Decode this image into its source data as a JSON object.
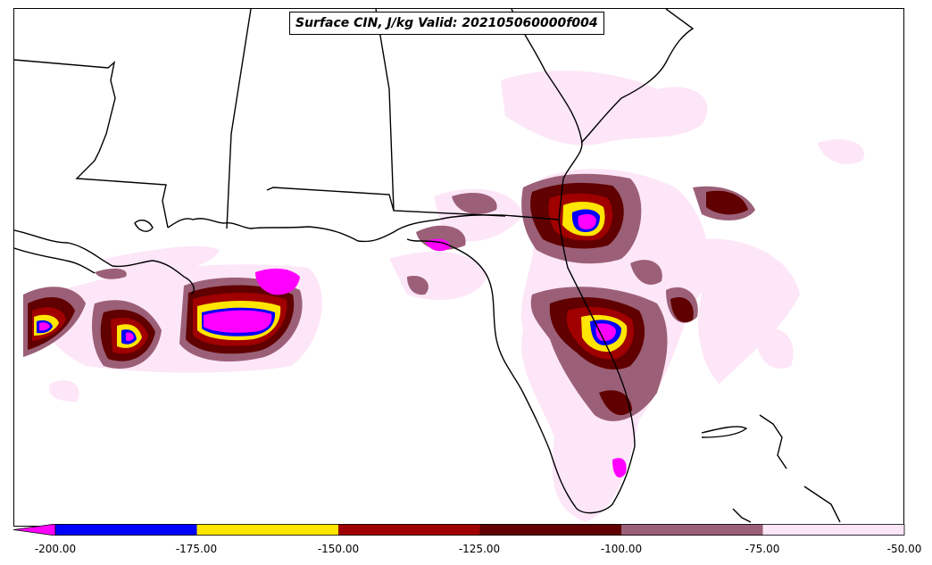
{
  "title": "Surface CIN, J/kg Valid: 202105060000f004",
  "colorbar": {
    "extend": "min",
    "extend_color": "#ff00ff",
    "bins": [
      {
        "from": -200,
        "to": -175,
        "color": "#0000ff"
      },
      {
        "from": -175,
        "to": -150,
        "color": "#ffe600"
      },
      {
        "from": -150,
        "to": -125,
        "color": "#a00000"
      },
      {
        "from": -125,
        "to": -100,
        "color": "#600000"
      },
      {
        "from": -100,
        "to": -75,
        "color": "#9b6077"
      },
      {
        "from": -75,
        "to": -50,
        "color": "#fde6f8"
      }
    ],
    "ticks": [
      "-200.00",
      "-175.00",
      "-150.00",
      "-125.00",
      "-100.00",
      "-75.00",
      "-50.00"
    ]
  }
}
